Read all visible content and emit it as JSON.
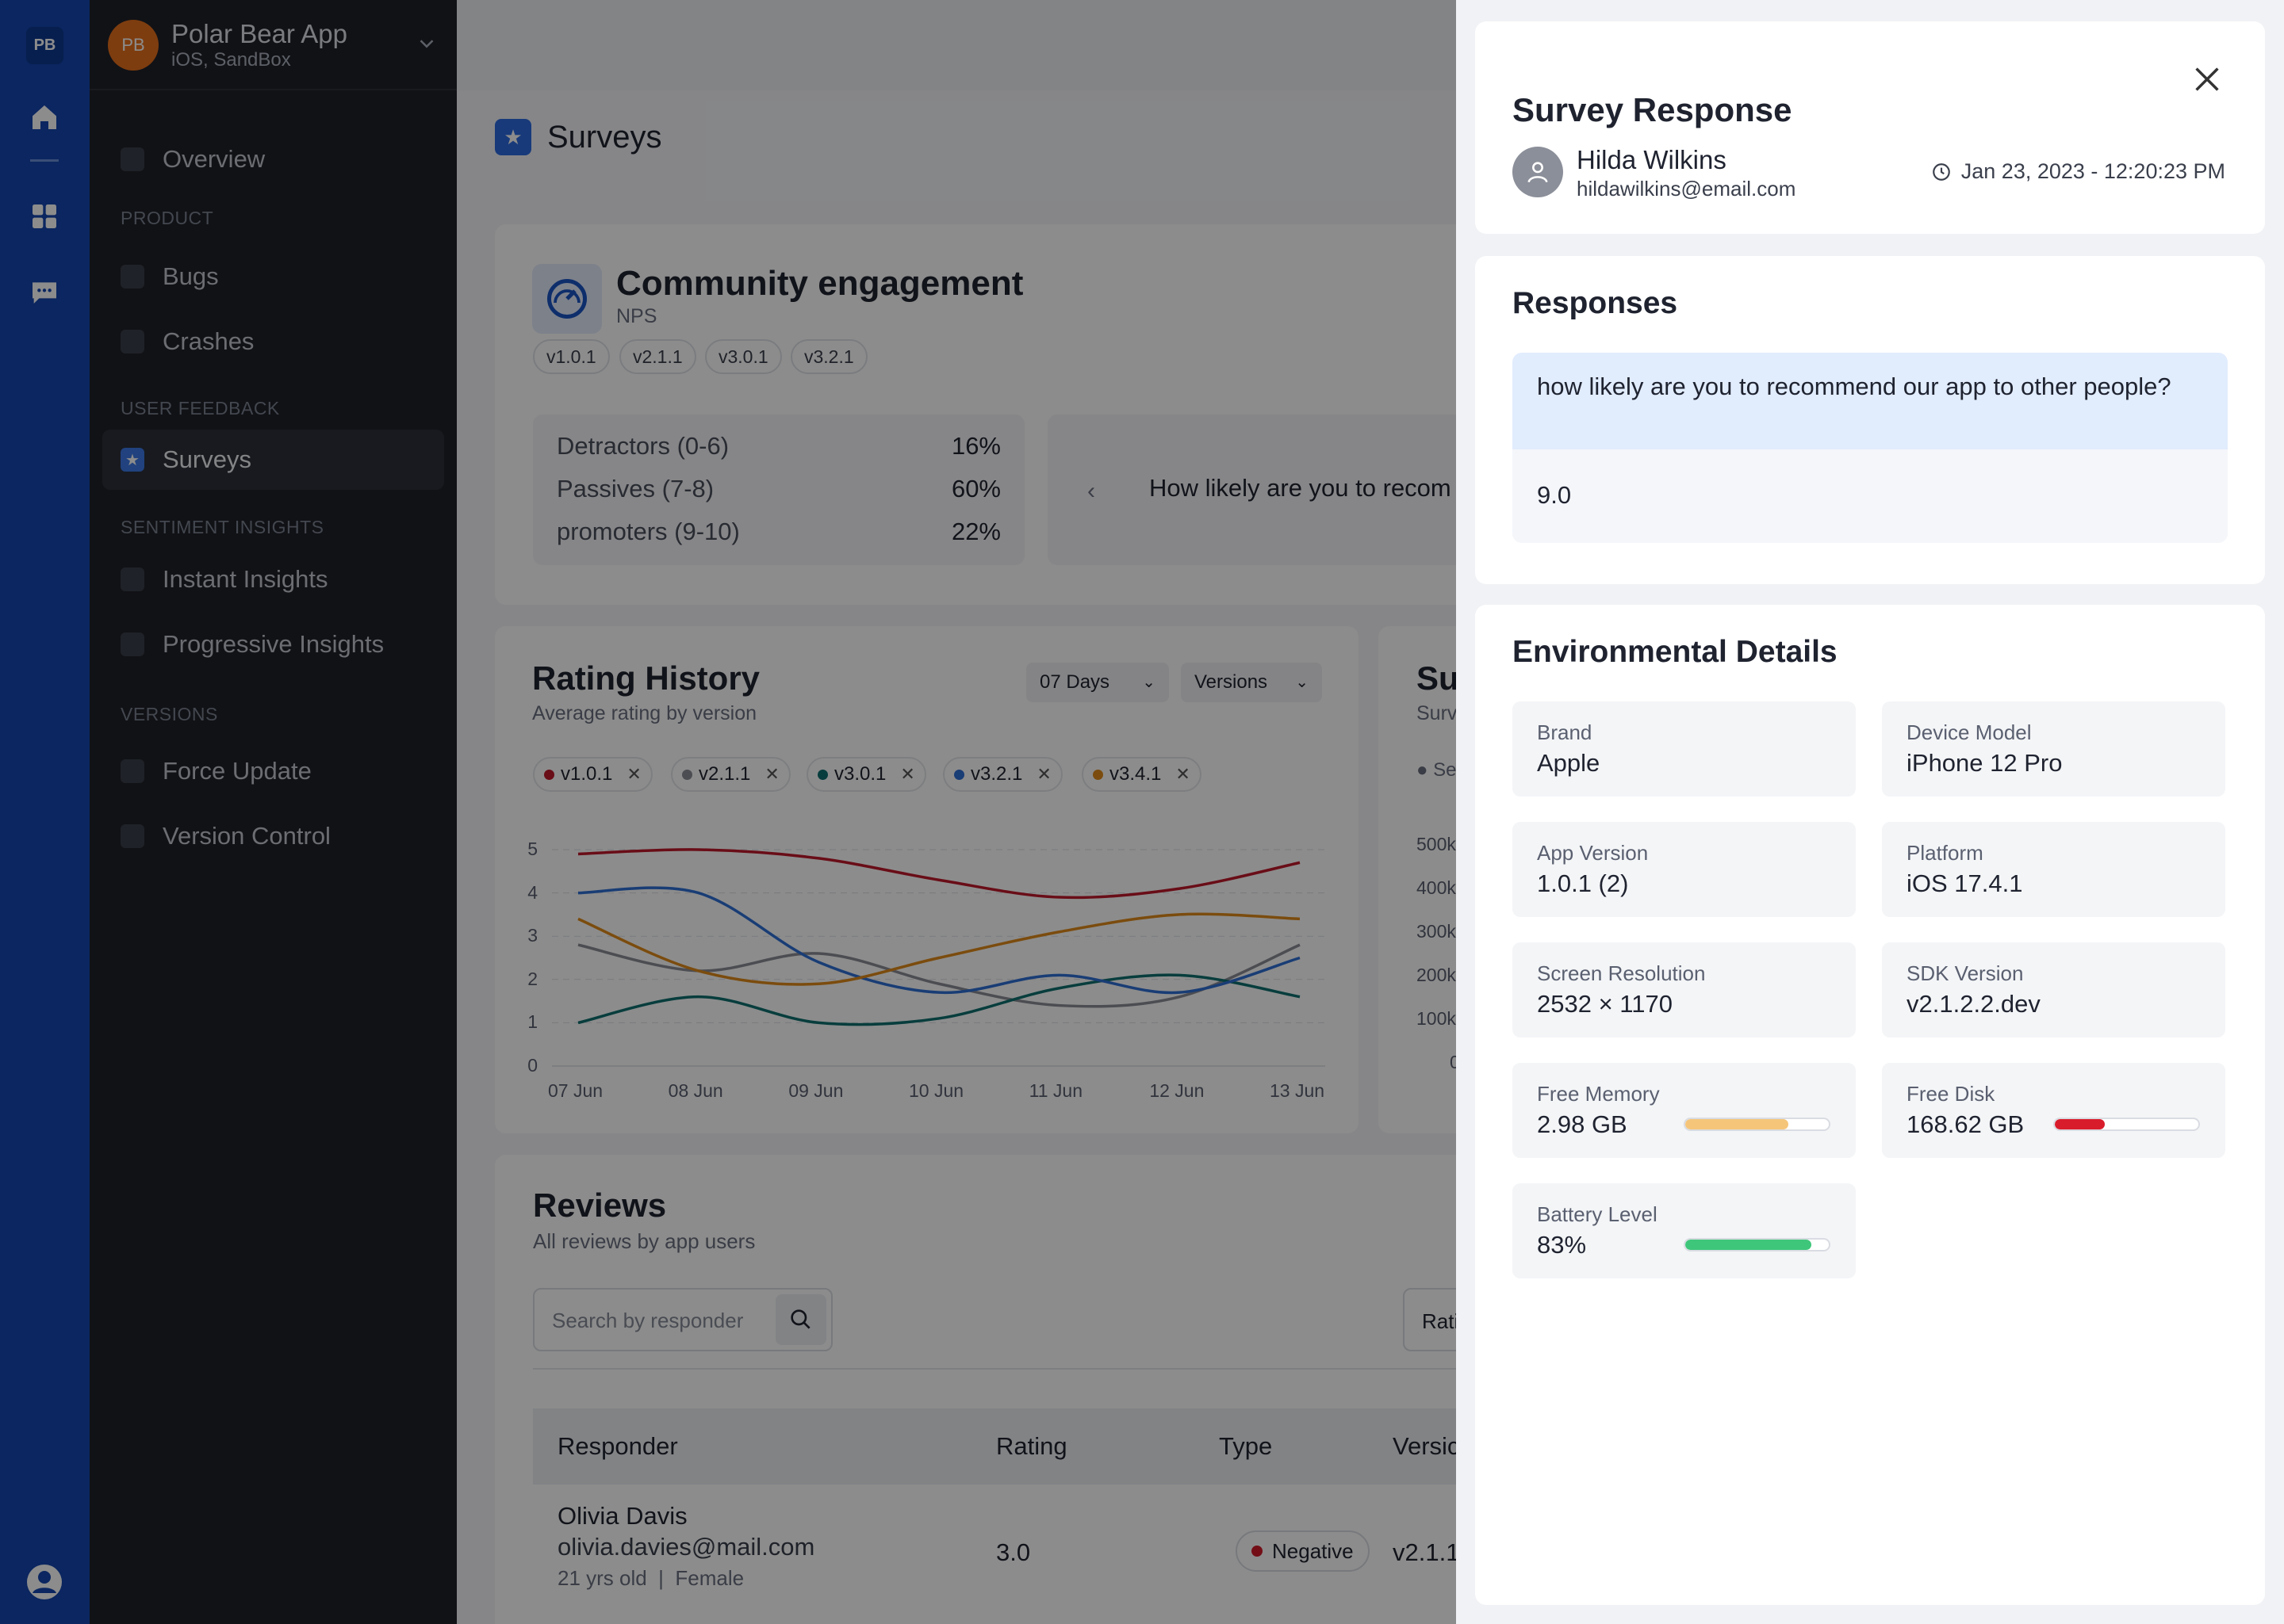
{
  "rail": {
    "logo": "PB",
    "icons": [
      "home-icon",
      "grid-icon",
      "chat-icon",
      "user-circle-icon"
    ]
  },
  "sidebar": {
    "app_initials": "PB",
    "app_name": "Polar Bear App",
    "app_env": "iOS, SandBox",
    "overview": "Overview",
    "sections": {
      "product": "PRODUCT",
      "feedback": "USER FEEDBACK",
      "sentiment": "SENTIMENT INSIGHTS",
      "versions": "VERSIONS"
    },
    "items": {
      "bugs": "Bugs",
      "crashes": "Crashes",
      "surveys": "Surveys",
      "instant": "Instant Insights",
      "progressive": "Progressive Insights",
      "force_update": "Force Update",
      "version_control": "Version Control"
    }
  },
  "main": {
    "page_title": "Surveys",
    "survey": {
      "title": "Community engagement",
      "type": "NPS",
      "versions": [
        "v1.0.1",
        "v2.1.1",
        "v3.0.1",
        "v3.2.1"
      ],
      "stats": [
        {
          "label": "Detractors (0-6)",
          "value": "16%"
        },
        {
          "label": "Passives (7-8)",
          "value": "60%"
        },
        {
          "label": "promoters (9-10)",
          "value": "22%"
        }
      ],
      "question": "How likely are you to recom"
    },
    "rating_history": {
      "title": "Rating History",
      "subtitle": "Average rating by version",
      "period": "07 Days",
      "versions_filter": "Versions"
    },
    "summary": {
      "title": "Su",
      "subtitle": "Surv",
      "legend": "● Se",
      "y_ticks": [
        "500k",
        "400k",
        "300k",
        "200k",
        "100k",
        "0"
      ]
    },
    "reviews": {
      "title": "Reviews",
      "subtitle": "All reviews by app users",
      "search_placeholder": "Search by responder",
      "rating_filter": "Rati",
      "columns": [
        "Responder",
        "Rating",
        "Type",
        "Versic"
      ],
      "row": {
        "name": "Olivia Davis",
        "email": "olivia.davies@mail.com",
        "meta": "21 yrs old  |  Female",
        "rating": "3.0",
        "type": "Negative",
        "version": "v2.1.1"
      }
    }
  },
  "chart_data": {
    "type": "line",
    "title": "Rating History",
    "subtitle": "Average rating by version",
    "x": [
      "07 Jun",
      "08 Jun",
      "09 Jun",
      "10 Jun",
      "11 Jun",
      "12 Jun",
      "13 Jun"
    ],
    "ylim": [
      0,
      5
    ],
    "y_ticks": [
      0,
      1,
      2,
      3,
      4,
      5
    ],
    "grid": true,
    "series": [
      {
        "name": "v1.0.1",
        "color": "#c0182a",
        "values": [
          4.9,
          5.0,
          4.8,
          4.3,
          3.9,
          4.1,
          4.7
        ]
      },
      {
        "name": "v2.1.1",
        "color": "#8a8d96",
        "values": [
          2.8,
          2.2,
          2.6,
          1.9,
          1.4,
          1.6,
          2.8
        ]
      },
      {
        "name": "v3.0.1",
        "color": "#0f6f6f",
        "values": [
          1.0,
          1.6,
          1.0,
          1.1,
          1.8,
          2.1,
          1.6
        ]
      },
      {
        "name": "v3.2.1",
        "color": "#2f6fd6",
        "values": [
          4.0,
          4.0,
          2.4,
          1.7,
          2.1,
          1.7,
          2.5
        ]
      },
      {
        "name": "v3.4.1",
        "color": "#e08a1a",
        "values": [
          3.4,
          2.2,
          1.9,
          2.5,
          3.1,
          3.5,
          3.4
        ]
      }
    ]
  },
  "panel": {
    "title": "Survey Response",
    "user_name": "Hilda Wilkins",
    "user_email": "hildawilkins@email.com",
    "date": "Jan 23, 2023 - 12:20:23 PM",
    "responses_title": "Responses",
    "question": "how likely are you to recommend our app to other people?",
    "answer": "9.0",
    "env_title": "Environmental Details",
    "details": [
      {
        "label": "Brand",
        "value": "Apple"
      },
      {
        "label": "Device Model",
        "value": "iPhone 12 Pro"
      },
      {
        "label": "App Version",
        "value": "1.0.1 (2)"
      },
      {
        "label": "Platform",
        "value": "iOS 17.4.1"
      },
      {
        "label": "Screen Resolution",
        "value": "2532 × 1170"
      },
      {
        "label": "SDK Version",
        "value": "v2.1.2.2.dev"
      },
      {
        "label": "Free Memory",
        "value": "2.98 GB",
        "level": 0.72,
        "color": "#f5c57a"
      },
      {
        "label": "Free Disk",
        "value": "168.62 GB",
        "level": 0.35,
        "color": "#d91c2c"
      },
      {
        "label": "Battery Level",
        "value": "83%",
        "level": 0.88,
        "color": "#3ec67a"
      }
    ]
  }
}
